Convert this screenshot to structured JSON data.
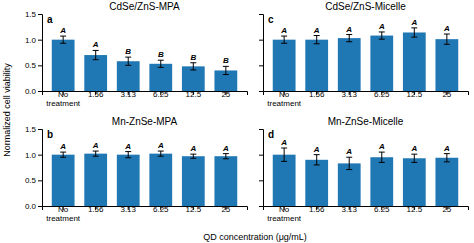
{
  "chart_data": [
    {
      "type": "bar",
      "title": "CdSe/ZnS-MPA",
      "label": "a",
      "categories": [
        "No\ntreatment",
        "1.56",
        "3.13",
        "6.25",
        "12.5",
        "25"
      ],
      "values": [
        1.0,
        0.7,
        0.58,
        0.53,
        0.48,
        0.4
      ],
      "errors": [
        0.07,
        0.09,
        0.08,
        0.07,
        0.07,
        0.08
      ],
      "letter_labels": [
        "A",
        "A",
        "B",
        "B",
        "B",
        "B"
      ],
      "ylim": [
        0,
        1.5
      ],
      "yticks": [
        {
          "value": 0,
          "label": "0.0"
        },
        0.5,
        {
          "value": 1.0,
          "label": "1.0"
        },
        1.5
      ],
      "tick_labels": true
    },
    {
      "type": "bar",
      "title": "CdSe/ZnS-Micelle",
      "label": "c",
      "categories": [
        "No\ntreatment",
        "1.56",
        "3.13",
        "6.25",
        "12.5",
        "25"
      ],
      "values": [
        1.0,
        1.0,
        1.03,
        1.08,
        1.14,
        1.01
      ],
      "errors": [
        0.07,
        0.08,
        0.07,
        0.07,
        0.09,
        0.1
      ],
      "letter_labels": [
        "A",
        "A",
        "A",
        "A",
        "A",
        "A"
      ],
      "ylim": [
        0,
        1.5
      ],
      "yticks": [
        0,
        0.5,
        1.0,
        1.5
      ],
      "tick_labels": "x"
    },
    {
      "type": "bar",
      "title": "Mn-ZnSe-MPA",
      "label": "b",
      "categories": [
        "No\ntreatment",
        "1.56",
        "3.13",
        "6.25",
        "12.5",
        "25"
      ],
      "values": [
        1.0,
        1.02,
        1.0,
        1.02,
        0.97,
        0.97
      ],
      "errors": [
        0.05,
        0.05,
        0.06,
        0.05,
        0.04,
        0.05
      ],
      "letter_labels": [
        "A",
        "A",
        "A",
        "A",
        "A",
        "A"
      ],
      "ylim": [
        0,
        1.5
      ],
      "yticks": [
        {
          "value": 0,
          "label": "0.0"
        },
        0.5,
        {
          "value": 1.0,
          "label": "1.0"
        },
        1.5
      ],
      "tick_labels": true
    },
    {
      "type": "bar",
      "title": "Mn-ZnSe-Micelle",
      "label": "d",
      "categories": [
        "No\ntreatment",
        "1.56",
        "3.13",
        "6.25",
        "12.5",
        "25"
      ],
      "values": [
        1.0,
        0.9,
        0.83,
        0.95,
        0.93,
        0.94
      ],
      "errors": [
        0.13,
        0.1,
        0.12,
        0.1,
        0.08,
        0.08
      ],
      "letter_labels": [
        "A",
        "A",
        "A",
        "A",
        "A",
        "A"
      ],
      "ylim": [
        0,
        1.5
      ],
      "yticks": [
        0,
        0.5,
        1.0,
        1.5
      ],
      "tick_labels": "x"
    }
  ],
  "ylabel": "Normalized cell viability",
  "xlabel": "QD concentration (μg/mL)"
}
